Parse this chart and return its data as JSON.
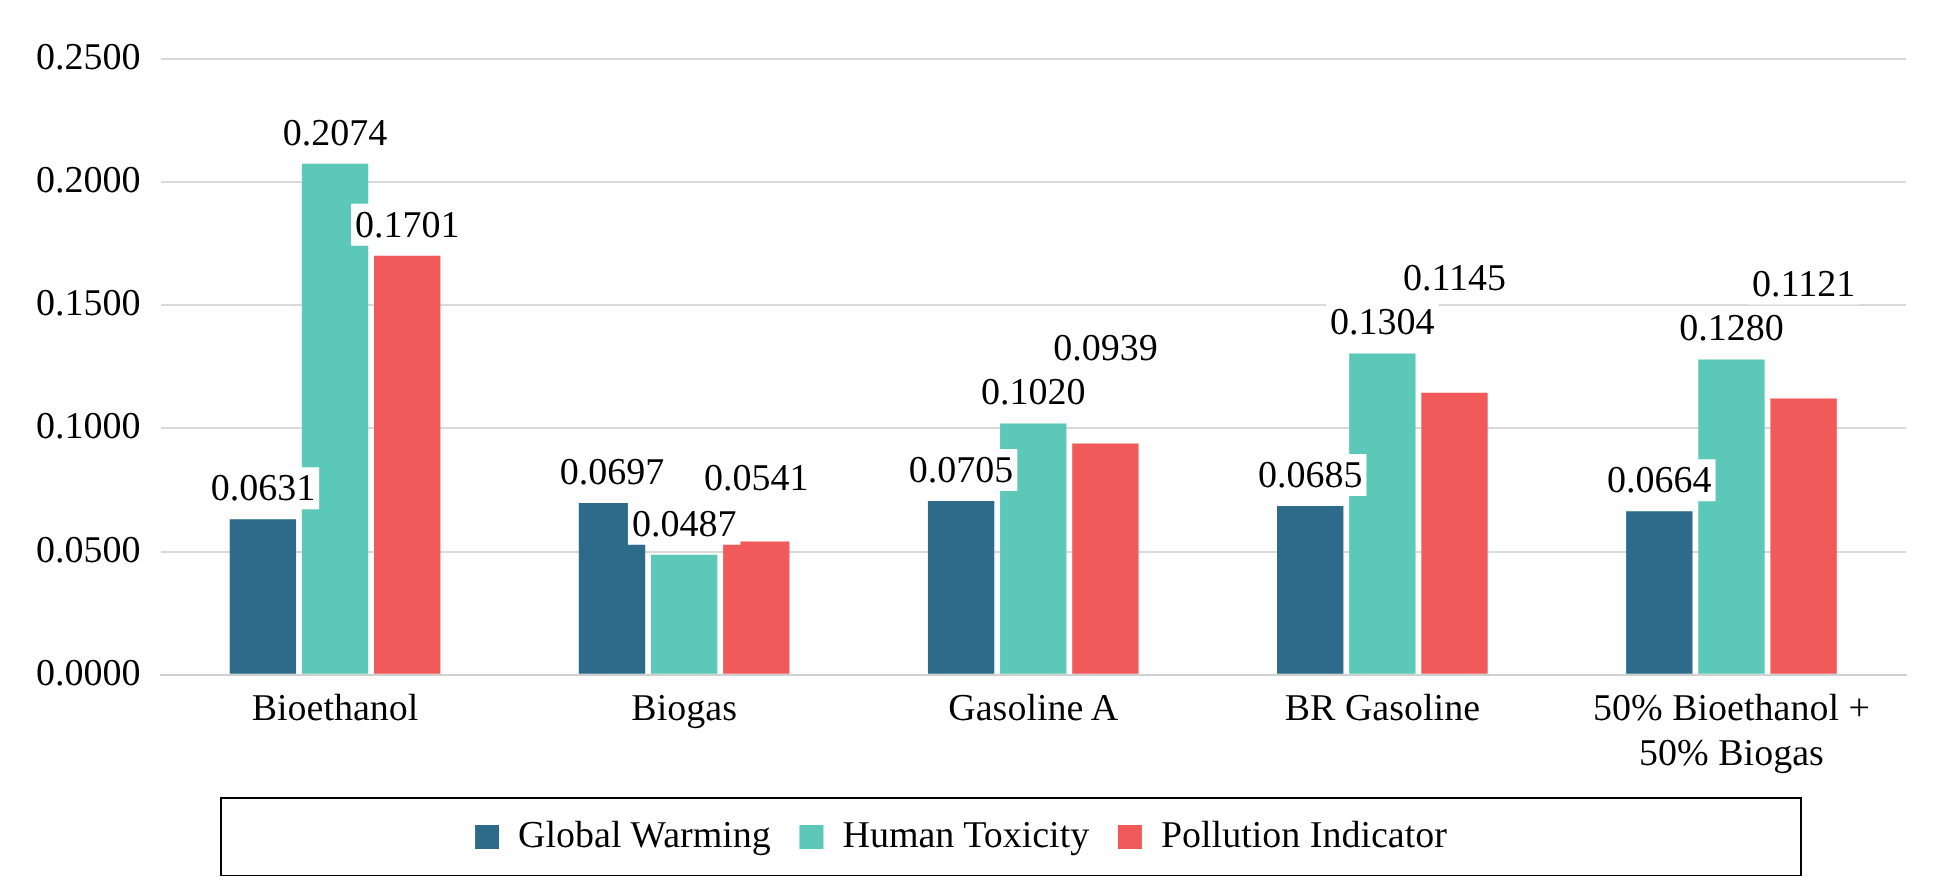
{
  "chart_data": {
    "type": "bar",
    "categories": [
      "Bioethanol",
      "Biogas",
      "Gasoline A",
      "BR Gasoline",
      "50% Bioethanol + 50% Biogas"
    ],
    "series": [
      {
        "name": "Global Warming",
        "color": "#2e6b8a",
        "values": [
          0.0631,
          0.0697,
          0.0705,
          0.0685,
          0.0664
        ],
        "value_labels": [
          "0.0631",
          "0.0697",
          "0.0705",
          "0.0685",
          "0.0664"
        ]
      },
      {
        "name": "Human Toxicity",
        "color": "#5bc8b8",
        "values": [
          0.2074,
          0.0487,
          0.102,
          0.1304,
          0.128
        ],
        "value_labels": [
          "0.2074",
          "0.0487",
          "0.1020",
          "0.1304",
          "0.1280"
        ]
      },
      {
        "name": "Pollution Indicator",
        "color": "#f05a5a",
        "values": [
          0.1701,
          0.0541,
          0.0939,
          0.1145,
          0.1121
        ],
        "value_labels": [
          "0.1701",
          "0.0541",
          "0.0939",
          "0.1145",
          "0.1121"
        ]
      }
    ],
    "ylim": [
      0,
      0.25
    ],
    "yticks": [
      {
        "value": 0,
        "label": "0.0000"
      },
      {
        "value": 0.05,
        "label": "0.0500"
      },
      {
        "value": 0.1,
        "label": "0.1000"
      },
      {
        "value": 0.15,
        "label": "0.1500"
      },
      {
        "value": 0.2,
        "label": "0.2000"
      },
      {
        "value": 0.25,
        "label": "0.2500"
      }
    ],
    "grid": "y",
    "legend": "bottom"
  }
}
